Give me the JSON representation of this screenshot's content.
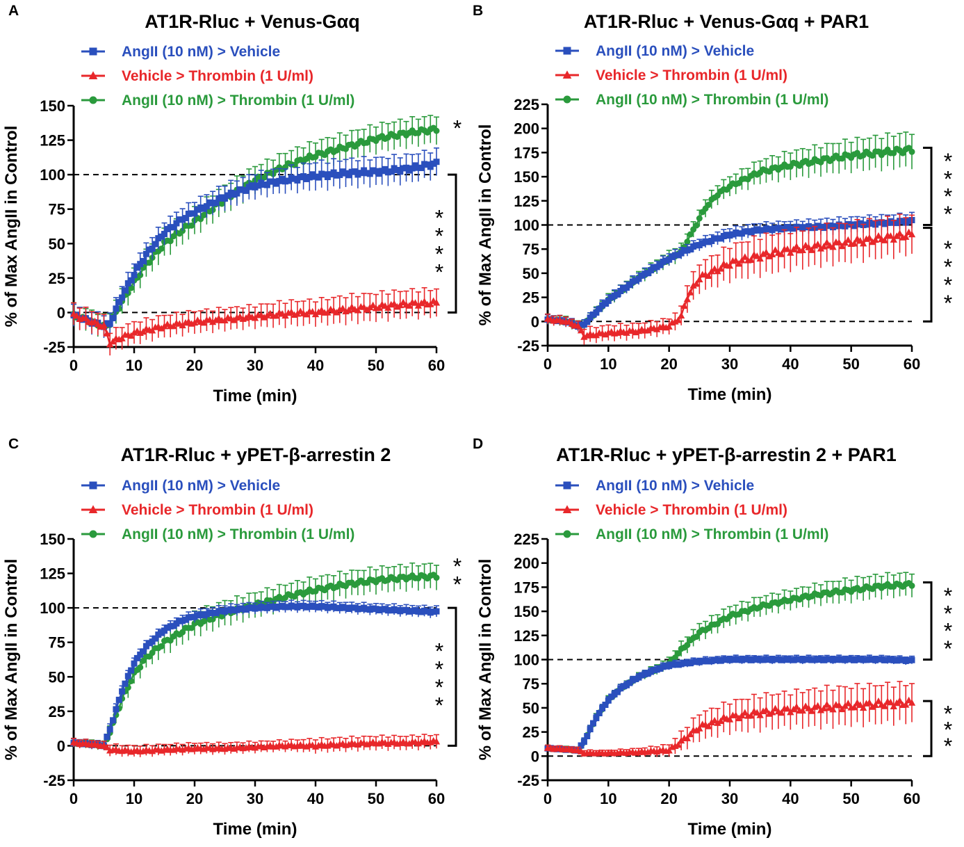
{
  "figure": {
    "description_free": true
  },
  "legend_labels": {
    "blue": "AngII (10 nM) > Vehicle",
    "red": "Vehicle > Thrombin (1 U/ml)",
    "green": "AngII (10 nM) > Thrombin (1 U/ml)"
  },
  "colors": {
    "blue": "#2a4fbd",
    "red": "#e8272a",
    "green": "#2a9a3c",
    "axis": "#000000"
  },
  "chart_data": [
    {
      "panel": "A",
      "type": "line",
      "title": "AT1R-Rluc + Venus-Gαq",
      "xlabel": "Time (min)",
      "ylabel": "% of Max AngII in Control",
      "xlim": [
        0,
        60
      ],
      "ylim": [
        -25,
        150
      ],
      "xticks": [
        0,
        10,
        20,
        30,
        40,
        50,
        60
      ],
      "yticks": [
        -25,
        0,
        25,
        50,
        75,
        100,
        125,
        150
      ],
      "reference_lines": [
        0,
        100
      ],
      "series": [
        {
          "name": "AngII (10 nM) > Vehicle",
          "color": "blue",
          "marker": "square",
          "x": [
            0,
            5,
            6,
            8,
            10,
            12,
            15,
            18,
            20,
            25,
            30,
            35,
            40,
            45,
            50,
            55,
            60
          ],
          "y": [
            -2,
            -10,
            -8,
            12,
            28,
            42,
            58,
            68,
            73,
            84,
            92,
            96,
            99,
            101,
            102,
            104,
            108
          ],
          "err": [
            8,
            8,
            8,
            8,
            8,
            8,
            8,
            8,
            8,
            9,
            9,
            9,
            10,
            10,
            10,
            10,
            10
          ]
        },
        {
          "name": "Vehicle > Thrombin (1 U/ml)",
          "color": "red",
          "marker": "triangle",
          "x": [
            0,
            5,
            6,
            8,
            10,
            15,
            20,
            25,
            30,
            35,
            40,
            45,
            50,
            55,
            60
          ],
          "y": [
            -2,
            -10,
            -22,
            -18,
            -15,
            -10,
            -7,
            -5,
            -3,
            -1,
            0,
            2,
            4,
            6,
            7
          ],
          "err": [
            8,
            8,
            8,
            8,
            8,
            8,
            8,
            8,
            8,
            9,
            9,
            10,
            10,
            10,
            10
          ]
        },
        {
          "name": "AngII (10 nM) > Thrombin (1 U/ml)",
          "color": "green",
          "marker": "circle",
          "x": [
            0,
            5,
            6,
            8,
            10,
            12,
            15,
            18,
            20,
            25,
            30,
            35,
            40,
            45,
            50,
            55,
            60
          ],
          "y": [
            -2,
            -10,
            -8,
            8,
            22,
            35,
            50,
            60,
            66,
            82,
            96,
            106,
            114,
            120,
            126,
            130,
            133
          ],
          "err": [
            8,
            8,
            8,
            9,
            9,
            10,
            10,
            10,
            10,
            10,
            10,
            10,
            10,
            10,
            10,
            10,
            10
          ]
        }
      ],
      "significance": [
        {
          "label": "*",
          "between": [
            100,
            135
          ],
          "bracket": false
        },
        {
          "label": "****",
          "between": [
            0,
            100
          ],
          "bracket": true
        }
      ]
    },
    {
      "panel": "B",
      "type": "line",
      "title": "AT1R-Rluc + Venus-Gαq + PAR1",
      "xlabel": "Time (min)",
      "ylabel": "% of Max AngII in Control",
      "xlim": [
        0,
        60
      ],
      "ylim": [
        -25,
        225
      ],
      "xticks": [
        0,
        10,
        20,
        30,
        40,
        50,
        60
      ],
      "yticks": [
        -25,
        0,
        25,
        50,
        75,
        100,
        125,
        150,
        175,
        200,
        225
      ],
      "reference_lines": [
        0,
        100
      ],
      "series": [
        {
          "name": "AngII (10 nM) > Vehicle",
          "color": "blue",
          "marker": "square",
          "x": [
            0,
            3,
            5,
            6,
            8,
            10,
            15,
            20,
            25,
            30,
            35,
            40,
            45,
            50,
            55,
            60
          ],
          "y": [
            2,
            0,
            -5,
            -3,
            10,
            22,
            45,
            65,
            80,
            90,
            95,
            97,
            98,
            100,
            102,
            104
          ],
          "err": [
            5,
            5,
            5,
            5,
            5,
            6,
            6,
            6,
            6,
            7,
            7,
            7,
            8,
            8,
            8,
            8
          ]
        },
        {
          "name": "Vehicle > Thrombin (1 U/ml)",
          "color": "red",
          "marker": "triangle",
          "x": [
            0,
            3,
            5,
            6,
            10,
            15,
            20,
            22,
            23,
            25,
            30,
            35,
            40,
            45,
            50,
            55,
            60
          ],
          "y": [
            2,
            0,
            -5,
            -15,
            -12,
            -10,
            -5,
            5,
            25,
            45,
            60,
            68,
            74,
            78,
            82,
            86,
            90
          ],
          "err": [
            5,
            5,
            5,
            8,
            8,
            8,
            8,
            10,
            14,
            15,
            18,
            20,
            20,
            20,
            20,
            20,
            20
          ]
        },
        {
          "name": "AngII (10 nM) > Thrombin (1 U/ml)",
          "color": "green",
          "marker": "circle",
          "x": [
            0,
            3,
            5,
            6,
            8,
            10,
            15,
            20,
            22,
            24,
            26,
            28,
            30,
            35,
            40,
            45,
            50,
            55,
            60
          ],
          "y": [
            2,
            0,
            -5,
            -3,
            10,
            22,
            45,
            65,
            72,
            95,
            118,
            132,
            140,
            155,
            162,
            167,
            172,
            175,
            178
          ],
          "err": [
            5,
            5,
            5,
            5,
            5,
            6,
            6,
            8,
            8,
            8,
            9,
            10,
            10,
            12,
            14,
            15,
            16,
            17,
            18
          ]
        }
      ],
      "significance": [
        {
          "label": "****",
          "between": [
            100,
            180
          ],
          "bracket": true
        },
        {
          "label": "****",
          "between": [
            0,
            97
          ],
          "bracket": true
        }
      ]
    },
    {
      "panel": "C",
      "type": "line",
      "title": "AT1R-Rluc + yPET-β-arrestin 2",
      "xlabel": "Time (min)",
      "ylabel": "% of Max AngII in Control",
      "xlim": [
        0,
        60
      ],
      "ylim": [
        -25,
        150
      ],
      "xticks": [
        0,
        10,
        20,
        30,
        40,
        50,
        60
      ],
      "yticks": [
        -25,
        0,
        25,
        50,
        75,
        100,
        125,
        150
      ],
      "reference_lines": [
        0,
        100
      ],
      "series": [
        {
          "name": "AngII (10 nM) > Vehicle",
          "color": "blue",
          "marker": "square",
          "x": [
            0,
            3,
            5,
            6,
            8,
            10,
            12,
            15,
            18,
            20,
            25,
            30,
            35,
            40,
            45,
            50,
            55,
            60
          ],
          "y": [
            2,
            1,
            0,
            12,
            40,
            60,
            72,
            84,
            91,
            94,
            98,
            100,
            101,
            101,
            100,
            99,
            98,
            97
          ],
          "err": [
            3,
            3,
            3,
            4,
            4,
            4,
            4,
            4,
            4,
            4,
            4,
            4,
            4,
            4,
            4,
            4,
            4,
            4
          ]
        },
        {
          "name": "Vehicle > Thrombin (1 U/ml)",
          "color": "red",
          "marker": "triangle",
          "x": [
            0,
            3,
            5,
            6,
            10,
            15,
            20,
            25,
            30,
            35,
            40,
            45,
            50,
            55,
            60
          ],
          "y": [
            2,
            1,
            0,
            -3,
            -4,
            -3,
            -2,
            -2,
            -1,
            0,
            0,
            1,
            2,
            2,
            3
          ],
          "err": [
            3,
            3,
            3,
            4,
            4,
            4,
            4,
            4,
            4,
            4,
            5,
            5,
            5,
            5,
            5
          ]
        },
        {
          "name": "AngII (10 nM) > Thrombin (1 U/ml)",
          "color": "green",
          "marker": "circle",
          "x": [
            0,
            3,
            5,
            6,
            8,
            10,
            12,
            15,
            18,
            20,
            25,
            30,
            35,
            40,
            45,
            50,
            55,
            60
          ],
          "y": [
            2,
            1,
            0,
            10,
            34,
            52,
            64,
            75,
            83,
            88,
            96,
            102,
            108,
            113,
            117,
            120,
            122,
            123
          ],
          "err": [
            3,
            3,
            3,
            5,
            7,
            8,
            8,
            9,
            9,
            9,
            9,
            9,
            9,
            9,
            9,
            9,
            9,
            9
          ]
        }
      ],
      "significance": [
        {
          "label": "**",
          "between": [
            100,
            125
          ],
          "bracket": false
        },
        {
          "label": "****",
          "between": [
            0,
            100
          ],
          "bracket": true
        }
      ]
    },
    {
      "panel": "D",
      "type": "line",
      "title": "AT1R-Rluc + yPET-β-arrestin 2 + PAR1",
      "xlabel": "Time (min)",
      "ylabel": "% of Max AngII in Control",
      "xlim": [
        0,
        60
      ],
      "ylim": [
        -25,
        225
      ],
      "xticks": [
        0,
        10,
        20,
        30,
        40,
        50,
        60
      ],
      "yticks": [
        -25,
        0,
        25,
        50,
        75,
        100,
        125,
        150,
        175,
        200,
        225
      ],
      "reference_lines": [
        0,
        100
      ],
      "series": [
        {
          "name": "AngII (10 nM) > Vehicle",
          "color": "blue",
          "marker": "square",
          "x": [
            0,
            3,
            5,
            6,
            8,
            10,
            12,
            15,
            18,
            20,
            25,
            30,
            35,
            40,
            45,
            50,
            55,
            60
          ],
          "y": [
            8,
            7,
            6,
            15,
            40,
            58,
            70,
            82,
            90,
            94,
            98,
            100,
            100,
            100,
            100,
            100,
            100,
            99
          ],
          "err": [
            3,
            3,
            3,
            4,
            4,
            4,
            4,
            4,
            4,
            4,
            4,
            4,
            4,
            4,
            4,
            4,
            4,
            4
          ]
        },
        {
          "name": "Vehicle > Thrombin (1 U/ml)",
          "color": "red",
          "marker": "triangle",
          "x": [
            0,
            3,
            5,
            6,
            10,
            15,
            20,
            22,
            25,
            30,
            35,
            40,
            45,
            50,
            55,
            60
          ],
          "y": [
            8,
            7,
            6,
            3,
            3,
            4,
            6,
            15,
            30,
            40,
            45,
            48,
            50,
            52,
            54,
            55
          ],
          "err": [
            3,
            3,
            3,
            3,
            3,
            4,
            6,
            10,
            14,
            16,
            18,
            18,
            20,
            20,
            20,
            20
          ]
        },
        {
          "name": "AngII (10 nM) > Thrombin (1 U/ml)",
          "color": "green",
          "marker": "circle",
          "x": [
            0,
            3,
            5,
            6,
            8,
            10,
            12,
            15,
            18,
            20,
            22,
            25,
            30,
            35,
            40,
            45,
            50,
            55,
            60
          ],
          "y": [
            8,
            7,
            6,
            15,
            40,
            58,
            70,
            82,
            90,
            96,
            110,
            128,
            145,
            155,
            162,
            168,
            172,
            176,
            178
          ],
          "err": [
            3,
            3,
            3,
            4,
            4,
            4,
            4,
            4,
            5,
            6,
            8,
            9,
            10,
            10,
            10,
            11,
            12,
            12,
            12
          ]
        }
      ],
      "significance": [
        {
          "label": "****",
          "between": [
            100,
            180
          ],
          "bracket": true
        },
        {
          "label": "***",
          "between": [
            0,
            57
          ],
          "bracket": true
        }
      ]
    }
  ]
}
